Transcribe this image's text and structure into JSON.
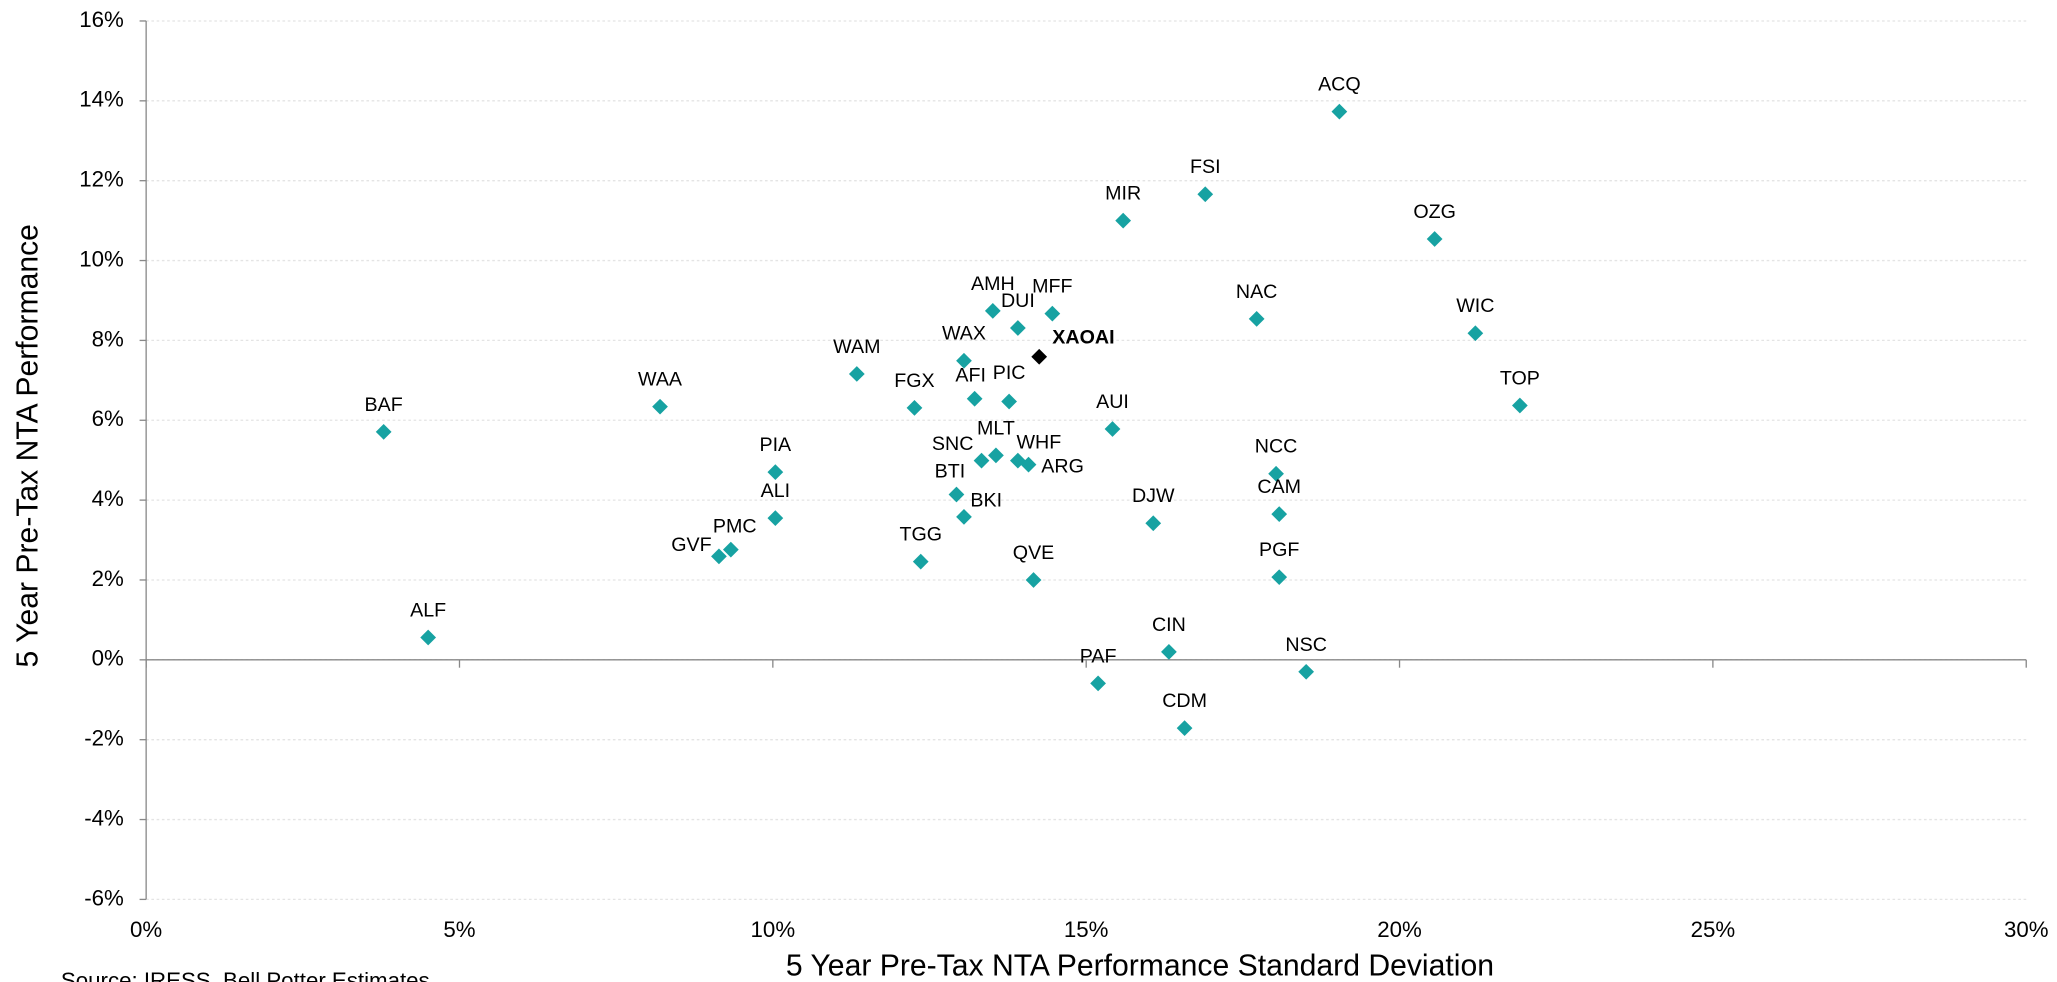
{
  "chart_data": {
    "type": "scatter",
    "x_label": "5 Year Pre-Tax NTA Performance Standard Deviation",
    "y_label": "5 Year Pre-Tax NTA Performance",
    "source": "Source: IRESS, Bell Potter Estimates",
    "xlim": [
      0,
      30
    ],
    "ylim": [
      -6,
      16
    ],
    "xticks": [
      {
        "value": 0,
        "label": "0%"
      },
      {
        "value": 5,
        "label": "5%"
      },
      {
        "value": 10,
        "label": "10%"
      },
      {
        "value": 15,
        "label": "15%"
      },
      {
        "value": 20,
        "label": "20%"
      },
      {
        "value": 25,
        "label": "25%"
      },
      {
        "value": 30,
        "label": "30%"
      }
    ],
    "yticks": [
      {
        "value": -6,
        "label": "-6%"
      },
      {
        "value": -4,
        "label": "-4%"
      },
      {
        "value": -2,
        "label": "-2%"
      },
      {
        "value": 0,
        "label": "0%"
      },
      {
        "value": 2,
        "label": "2%"
      },
      {
        "value": 4,
        "label": "4%"
      },
      {
        "value": 6,
        "label": "6%"
      },
      {
        "value": 8,
        "label": "8%"
      },
      {
        "value": 10,
        "label": "10%"
      },
      {
        "value": 12,
        "label": "12%"
      },
      {
        "value": 14,
        "label": "14%"
      },
      {
        "value": 16,
        "label": "16%"
      }
    ],
    "grid": true,
    "series": [
      {
        "color": "#17a2a2",
        "labels": [
          "BAF",
          "ALF",
          "WAA",
          "PIA",
          "ALI",
          "PMC",
          "GVF",
          "WAM",
          "FGX",
          "TGG",
          "WAX",
          "AFI",
          "BTI",
          "BKI",
          "SNC",
          "MLT",
          "AMH",
          "DUI",
          "MFF",
          "PIC",
          "WHF",
          "ARG",
          "QVE",
          "AUI",
          "PAF",
          "MIR",
          "FSI",
          "CIN",
          "CDM",
          "DJW",
          "NAC",
          "NCC",
          "CAM",
          "PGF",
          "NSC",
          "ACQ",
          "OZG",
          "WIC",
          "TOP"
        ],
        "x": [
          3.79,
          4.5,
          8.2,
          10.04,
          10.04,
          9.33,
          9.14,
          11.34,
          12.26,
          12.36,
          13.05,
          13.22,
          12.93,
          13.05,
          13.33,
          13.56,
          13.51,
          13.91,
          14.46,
          13.77,
          13.91,
          14.08,
          14.16,
          15.42,
          15.19,
          15.59,
          16.9,
          16.32,
          16.57,
          16.07,
          17.72,
          18.03,
          18.08,
          18.08,
          18.51,
          19.04,
          20.56,
          21.21,
          21.92
        ],
        "y": [
          5.71,
          0.56,
          6.34,
          4.7,
          3.55,
          2.76,
          2.59,
          7.16,
          6.31,
          2.46,
          7.49,
          6.54,
          4.14,
          3.58,
          4.99,
          5.12,
          8.74,
          8.31,
          8.67,
          6.47,
          4.99,
          4.89,
          2.0,
          5.78,
          -0.59,
          11.0,
          11.66,
          0.2,
          -1.71,
          3.42,
          8.54,
          4.66,
          3.65,
          2.07,
          -0.3,
          13.73,
          10.54,
          8.18,
          6.37
        ]
      },
      {
        "color": "#000000",
        "labels": [
          "XAOAI"
        ],
        "x": [
          14.25
        ],
        "y": [
          7.59
        ],
        "bold": true
      }
    ]
  }
}
